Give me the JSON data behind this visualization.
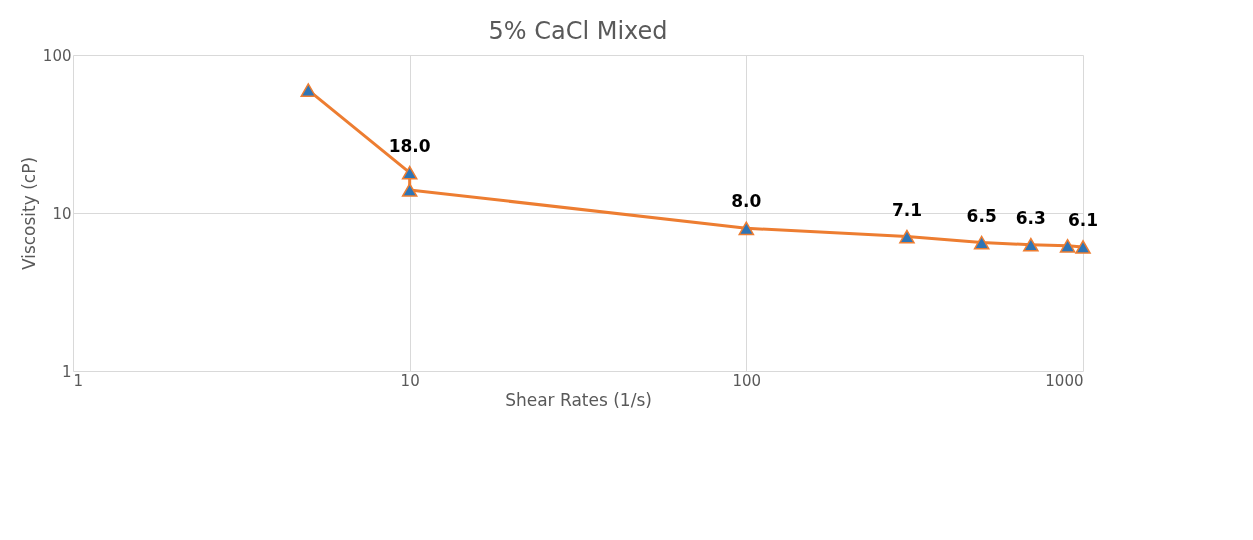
{
  "chart_data": {
    "type": "line",
    "title": "5% CaCl Mixed",
    "xlabel": "Shear Rates (1/s)",
    "ylabel": "Viscosity (cP)",
    "x": [
      5,
      10,
      10,
      100,
      300,
      500,
      700,
      900,
      1000
    ],
    "series": [
      {
        "color": "#ed7d31",
        "colors": [
          "#2e75b6",
          "#2e75b6",
          "#2e75b6",
          "#2e75b6",
          "#2e75b6",
          "#2e75b6",
          "#2e75b6",
          "#2e75b6",
          "#2e75b6"
        ],
        "values": [
          60,
          18.0,
          14,
          8.0,
          7.1,
          6.5,
          6.3,
          6.2,
          6.1
        ],
        "value_labels": [
          null,
          "18.0",
          null,
          "8.0",
          "7.1",
          "6.5",
          "6.3",
          null,
          "6.1"
        ]
      }
    ],
    "log": "xy",
    "xlim": [
      1,
      1000
    ],
    "ylim": [
      1,
      100
    ],
    "xticks": [
      1,
      10,
      100,
      1000
    ],
    "yticks": [
      1,
      10,
      100
    ],
    "grid": true,
    "marker": "triangle",
    "line_style": "solid"
  }
}
